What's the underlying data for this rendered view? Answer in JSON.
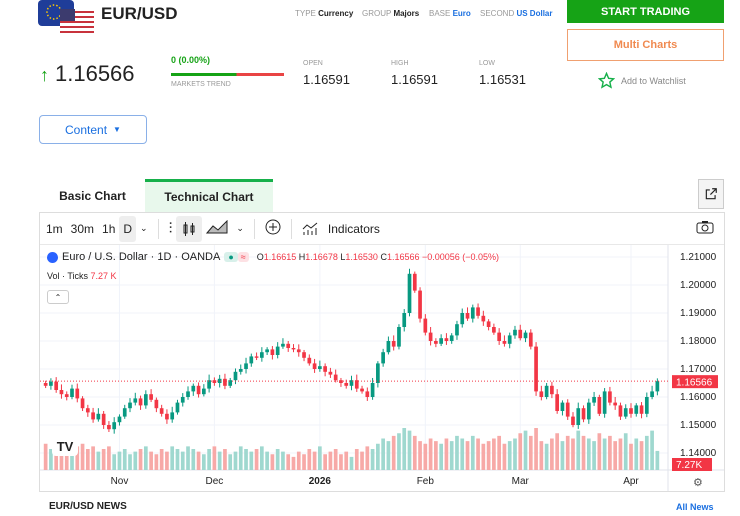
{
  "header": {
    "pair": "EUR/USD",
    "type_label": "TYPE",
    "type": "Currency",
    "group_label": "GROUP",
    "group": "Majors",
    "base_label": "BASE",
    "base": "Euro",
    "second_label": "SECOND",
    "second": "US Dollar"
  },
  "actions": {
    "start_trading": "START TRADING",
    "multi_charts": "Multi Charts",
    "watchlist": "Add to Watchlist"
  },
  "quote": {
    "price": "1.16566",
    "change": "0 (0.00%)",
    "trend_label": "MARKETS TREND",
    "trend_bullish_pct": 58,
    "open_label": "OPEN",
    "open": "1.16591",
    "high_label": "HIGH",
    "high": "1.16591",
    "low_label": "LOW",
    "low": "1.16531"
  },
  "content_button": "Content",
  "tabs": [
    {
      "label": "Basic Chart"
    },
    {
      "label": "Technical Chart"
    }
  ],
  "toolbar": {
    "intervals": [
      "1m",
      "30m",
      "1h",
      "D"
    ],
    "indicators": "Indicators"
  },
  "legend": {
    "symbol": "Euro / U.S. Dollar · 1D · OANDA",
    "o_label": "O",
    "o": "1.16615",
    "h_label": "H",
    "h": "1.16678",
    "l_label": "L",
    "l": "1.16530",
    "c_label": "C",
    "c": "1.16566",
    "change": "−0.00056 (−0.05%)",
    "vol_label": "Vol · Ticks",
    "vol": "7.27 K"
  },
  "colors": {
    "up": "#089981",
    "down": "#f23645",
    "vol_up": "#9fd8cf",
    "vol_down": "#f7a9a7",
    "green": "#16a316"
  },
  "chart_data": {
    "type": "candlestick",
    "y_ticks": [
      "1.21000",
      "1.20000",
      "1.19000",
      "1.18000",
      "1.17000",
      "1.16000",
      "1.15000",
      "1.14000"
    ],
    "ylim": [
      1.138,
      1.215
    ],
    "x_labels": [
      {
        "label": "Nov",
        "index": 14
      },
      {
        "label": "Dec",
        "index": 32
      },
      {
        "label": "2026",
        "index": 52
      },
      {
        "label": "Feb",
        "index": 72
      },
      {
        "label": "Mar",
        "index": 90
      },
      {
        "label": "Apr",
        "index": 111
      }
    ],
    "last_price_label": "1.16566",
    "last_vol_label": "7.27K",
    "closes": [
      1.164,
      1.1655,
      1.1625,
      1.161,
      1.16,
      1.163,
      1.1595,
      1.156,
      1.1545,
      1.152,
      1.154,
      1.15,
      1.1485,
      1.151,
      1.153,
      1.156,
      1.158,
      1.1595,
      1.157,
      1.161,
      1.159,
      1.156,
      1.154,
      1.152,
      1.1545,
      1.158,
      1.16,
      1.162,
      1.164,
      1.161,
      1.163,
      1.166,
      1.165,
      1.1665,
      1.164,
      1.166,
      1.169,
      1.17,
      1.172,
      1.1745,
      1.174,
      1.176,
      1.177,
      1.175,
      1.178,
      1.179,
      1.1775,
      1.177,
      1.176,
      1.174,
      1.172,
      1.17,
      1.171,
      1.169,
      1.168,
      1.166,
      1.165,
      1.164,
      1.166,
      1.163,
      1.162,
      1.16,
      1.165,
      1.172,
      1.176,
      1.18,
      1.178,
      1.185,
      1.19,
      1.204,
      1.198,
      1.188,
      1.183,
      1.18,
      1.179,
      1.181,
      1.18,
      1.182,
      1.186,
      1.19,
      1.188,
      1.192,
      1.189,
      1.187,
      1.185,
      1.183,
      1.18,
      1.179,
      1.182,
      1.184,
      1.181,
      1.183,
      1.178,
      1.162,
      1.16,
      1.164,
      1.161,
      1.155,
      1.158,
      1.153,
      1.15,
      1.156,
      1.152,
      1.158,
      1.16,
      1.154,
      1.162,
      1.158,
      1.157,
      1.153,
      1.156,
      1.154,
      1.157,
      1.154,
      1.16,
      1.162,
      1.16566
    ],
    "volumes_k": [
      10,
      8,
      9,
      7,
      8,
      6,
      9,
      10,
      8,
      9,
      7,
      8,
      9,
      6,
      7,
      8,
      6,
      7,
      8,
      9,
      7,
      6,
      8,
      7,
      9,
      8,
      7,
      9,
      8,
      7,
      6,
      8,
      9,
      7,
      8,
      6,
      7,
      9,
      8,
      7,
      8,
      9,
      7,
      6,
      8,
      7,
      6,
      5,
      7,
      6,
      8,
      7,
      9,
      6,
      7,
      8,
      6,
      7,
      5,
      8,
      7,
      9,
      8,
      10,
      12,
      11,
      13,
      14,
      16,
      15,
      13,
      11,
      10,
      12,
      11,
      10,
      12,
      11,
      13,
      12,
      11,
      13,
      12,
      10,
      11,
      12,
      13,
      10,
      11,
      12,
      14,
      15,
      13,
      16,
      11,
      10,
      12,
      14,
      11,
      13,
      12,
      15,
      13,
      12,
      11,
      14,
      12,
      13,
      11,
      12,
      14,
      10,
      12,
      11,
      13,
      15,
      7.27
    ]
  }
}
